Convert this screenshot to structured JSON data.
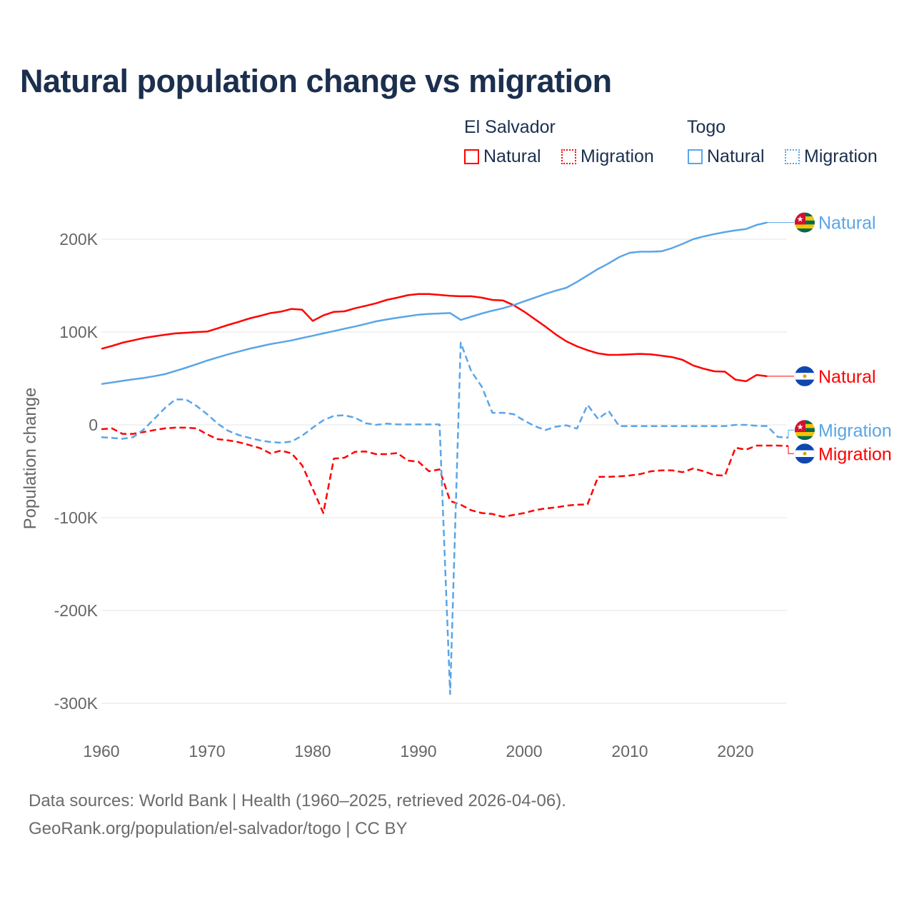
{
  "chart_data": {
    "type": "line",
    "title": "Natural population change vs migration",
    "xlabel": "",
    "ylabel": "Population change",
    "xlim": [
      1960,
      2025
    ],
    "ylim": [
      -300000,
      220000
    ],
    "x_ticks": [
      "1960",
      "1970",
      "1980",
      "1990",
      "2000",
      "2010",
      "2020"
    ],
    "x_tick_values": [
      1960,
      1970,
      1980,
      1990,
      2000,
      2010,
      2020
    ],
    "y_ticks": [
      "200K",
      "100K",
      "0",
      "-100K",
      "-200K",
      "-300K"
    ],
    "y_tick_values": [
      200,
      100,
      0,
      -100,
      -200,
      -300
    ],
    "units": "thousands",
    "grid": true,
    "legend_groups": [
      {
        "country": "El Salvador",
        "items": [
          "Natural",
          "Migration"
        ]
      },
      {
        "country": "Togo",
        "items": [
          "Natural",
          "Migration"
        ]
      }
    ],
    "series": [
      {
        "name": "El Salvador Natural",
        "label": "Natural",
        "country": "El Salvador",
        "color": "#ff0000",
        "dashed": false,
        "start_year": 1960,
        "values": [
          82,
          85,
          88.5,
          91,
          93.5,
          95.4,
          97,
          98.5,
          99.2,
          100,
          100.5,
          104,
          107.7,
          111,
          114.6,
          117.4,
          120.5,
          122,
          124.9,
          124,
          112,
          117.9,
          121.8,
          122.3,
          125.6,
          128.2,
          131,
          134.6,
          137,
          139.7,
          141,
          141,
          140,
          139,
          138.5,
          138.5,
          137,
          134.6,
          134,
          129,
          122,
          114,
          106,
          97.4,
          90,
          84.6,
          80.5,
          77,
          75.4,
          75.5,
          76,
          76.5,
          76,
          74.5,
          73,
          70,
          64,
          60.5,
          57.7,
          57.3,
          48.7,
          47,
          53.8,
          52.4
        ]
      },
      {
        "name": "El Salvador Migration",
        "label": "Migration",
        "country": "El Salvador",
        "color": "#ff0000",
        "dashed": true,
        "start_year": 1960,
        "values": [
          -4.6,
          -3.8,
          -9.7,
          -9.7,
          -7.7,
          -5.6,
          -3.8,
          -3,
          -3,
          -3.8,
          -10.2,
          -15.4,
          -16.7,
          -18.7,
          -21.8,
          -25,
          -30.8,
          -27.7,
          -30.8,
          -43.6,
          -69,
          -95,
          -36.4,
          -35.4,
          -29,
          -28.7,
          -31.5,
          -31.5,
          -30.3,
          -38.5,
          -39.7,
          -50,
          -48,
          -82,
          -86,
          -92,
          -95,
          -96,
          -99,
          -97,
          -95,
          -92,
          -90,
          -89,
          -87,
          -86,
          -85.6,
          -56,
          -56,
          -55.5,
          -54.5,
          -53,
          -50,
          -49,
          -49,
          -51,
          -47,
          -50,
          -54,
          -54.6,
          -24.6,
          -26.7,
          -22.3,
          -22.3,
          -22.3,
          -22.8
        ]
      },
      {
        "name": "Togo Natural",
        "label": "Natural",
        "country": "Togo",
        "color": "#5aa5e8",
        "dashed": false,
        "start_year": 1960,
        "values": [
          44,
          45.7,
          47.4,
          49,
          50.5,
          52.5,
          54.6,
          58,
          61.5,
          65.3,
          69.2,
          72.6,
          76,
          79,
          82,
          84.5,
          87,
          89,
          91,
          93.5,
          96,
          98.5,
          101,
          103.5,
          106,
          108.7,
          111.5,
          113.5,
          115.4,
          117,
          118.7,
          119.5,
          120,
          120.5,
          113,
          116.5,
          120,
          123,
          125.6,
          129,
          133,
          137,
          141,
          144.5,
          147.7,
          154,
          161,
          168,
          174,
          180.8,
          185.4,
          186.5,
          186.5,
          187,
          190.5,
          195,
          200,
          203,
          205.5,
          207.7,
          209.5,
          211,
          215.4,
          218
        ]
      },
      {
        "name": "Togo Migration",
        "label": "Migration",
        "country": "Togo",
        "color": "#5aa5e8",
        "dashed": true,
        "start_year": 1960,
        "values": [
          -13.3,
          -14,
          -15,
          -13.3,
          -5,
          6.4,
          18,
          27.4,
          27.4,
          20.5,
          11.5,
          1.3,
          -6.4,
          -11,
          -14,
          -16.7,
          -18.5,
          -19.2,
          -18,
          -11.5,
          -3,
          5,
          9.7,
          10.3,
          7.7,
          1.8,
          0,
          1.3,
          0.5,
          0.5,
          0.5,
          0.5,
          0.5,
          -290,
          88.5,
          57.7,
          41,
          13,
          13,
          11.5,
          4.6,
          -1.3,
          -5.6,
          -2,
          -0.5,
          -4,
          21.5,
          6.4,
          14.9,
          -1.3,
          -1.3,
          -1.3,
          -1.3,
          -1.3,
          -1.3,
          -1.3,
          -1.3,
          -1.3,
          -1.3,
          -1.3,
          0,
          0,
          -1,
          -1.3,
          -13,
          -13.8
        ]
      }
    ]
  },
  "footer": {
    "line1": "Data sources: World Bank | Health (1960–2025, retrieved 2026-04-06).",
    "line2": "GeoRank.org/population/el-salvador/togo | CC BY"
  },
  "colors": {
    "el_salvador": "#ff0000",
    "togo": "#5aa5e8",
    "title": "#1b2f4e",
    "grid": "#e6e6e6",
    "axis_text": "#666666"
  }
}
